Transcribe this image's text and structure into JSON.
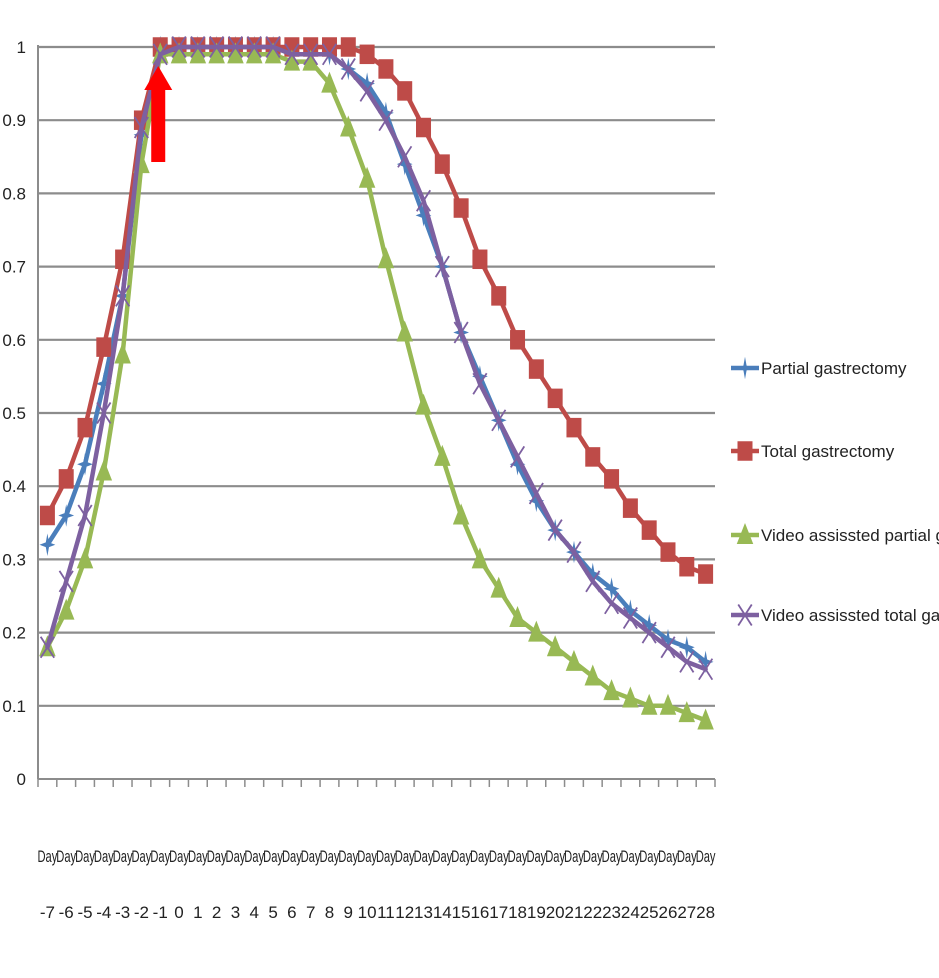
{
  "chart_data": {
    "type": "line",
    "title": "",
    "xlabel": "",
    "ylabel": "",
    "x_top": [
      "Day",
      "Day",
      "Day",
      "Day",
      "Day",
      "Day",
      "Day",
      "Day",
      "Day",
      "Day",
      "Day",
      "Day",
      "Day",
      "Day",
      "Day",
      "Day",
      "Day",
      "Day",
      "Day",
      "Day",
      "Day",
      "Day",
      "Day",
      "Day",
      "Day",
      "Day",
      "Day",
      "Day",
      "Day",
      "Day",
      "Day",
      "Day",
      "Day",
      "Day",
      "Day",
      "Day"
    ],
    "x_bottom": [
      "-7",
      "-6",
      "-5",
      "-4",
      "-3",
      "-2",
      "-1",
      "0",
      "1",
      "2",
      "3",
      "4",
      "5",
      "6",
      "7",
      "8",
      "9",
      "10",
      "11",
      "12",
      "13",
      "14",
      "15",
      "16",
      "17",
      "18",
      "19",
      "20",
      "21",
      "22",
      "23",
      "24",
      "25",
      "26",
      "27",
      "28"
    ],
    "ylim": [
      0,
      1
    ],
    "yticks": [
      "0",
      "0.1",
      "0.2",
      "0.3",
      "0.4",
      "0.5",
      "0.6",
      "0.7",
      "0.8",
      "0.9",
      "1"
    ],
    "grid": "horizontal",
    "legend_position": "right",
    "annotation": {
      "type": "arrow",
      "color": "#ff0000",
      "at_x": "-1",
      "direction": "up"
    },
    "series": [
      {
        "name": "Partial gastrectomy",
        "color": "#4a7ebb",
        "marker": "star",
        "values": [
          0.32,
          0.36,
          0.43,
          0.54,
          0.66,
          0.88,
          1.0,
          1.0,
          1.0,
          1.0,
          1.0,
          1.0,
          1.0,
          0.99,
          0.99,
          0.99,
          0.97,
          0.95,
          0.91,
          0.84,
          0.77,
          0.7,
          0.61,
          0.55,
          0.49,
          0.43,
          0.38,
          0.34,
          0.31,
          0.28,
          0.26,
          0.23,
          0.21,
          0.19,
          0.18,
          0.16
        ]
      },
      {
        "name": "Total gastrectomy",
        "color": "#be4b48",
        "marker": "square",
        "values": [
          0.36,
          0.41,
          0.48,
          0.59,
          0.71,
          0.9,
          1.0,
          1.0,
          1.0,
          1.0,
          1.0,
          1.0,
          1.0,
          1.0,
          1.0,
          1.0,
          1.0,
          0.99,
          0.97,
          0.94,
          0.89,
          0.84,
          0.78,
          0.71,
          0.66,
          0.6,
          0.56,
          0.52,
          0.48,
          0.44,
          0.41,
          0.37,
          0.34,
          0.31,
          0.29,
          0.28
        ]
      },
      {
        "name": "Video assissted partial gastrectomy",
        "color": "#98b954",
        "marker": "triangle",
        "values": [
          0.18,
          0.23,
          0.3,
          0.42,
          0.58,
          0.84,
          0.99,
          0.99,
          0.99,
          0.99,
          0.99,
          0.99,
          0.99,
          0.98,
          0.98,
          0.95,
          0.89,
          0.82,
          0.71,
          0.61,
          0.51,
          0.44,
          0.36,
          0.3,
          0.26,
          0.22,
          0.2,
          0.18,
          0.16,
          0.14,
          0.12,
          0.11,
          0.1,
          0.1,
          0.09,
          0.08
        ]
      },
      {
        "name": "Video assissted total gastrectomy",
        "color": "#7d60a0",
        "marker": "x",
        "values": [
          0.18,
          0.27,
          0.36,
          0.5,
          0.66,
          0.89,
          0.99,
          1.0,
          1.0,
          1.0,
          1.0,
          1.0,
          1.0,
          0.99,
          0.99,
          0.99,
          0.97,
          0.94,
          0.9,
          0.85,
          0.79,
          0.7,
          0.61,
          0.54,
          0.49,
          0.44,
          0.39,
          0.34,
          0.31,
          0.27,
          0.24,
          0.22,
          0.2,
          0.18,
          0.16,
          0.15
        ]
      }
    ]
  }
}
